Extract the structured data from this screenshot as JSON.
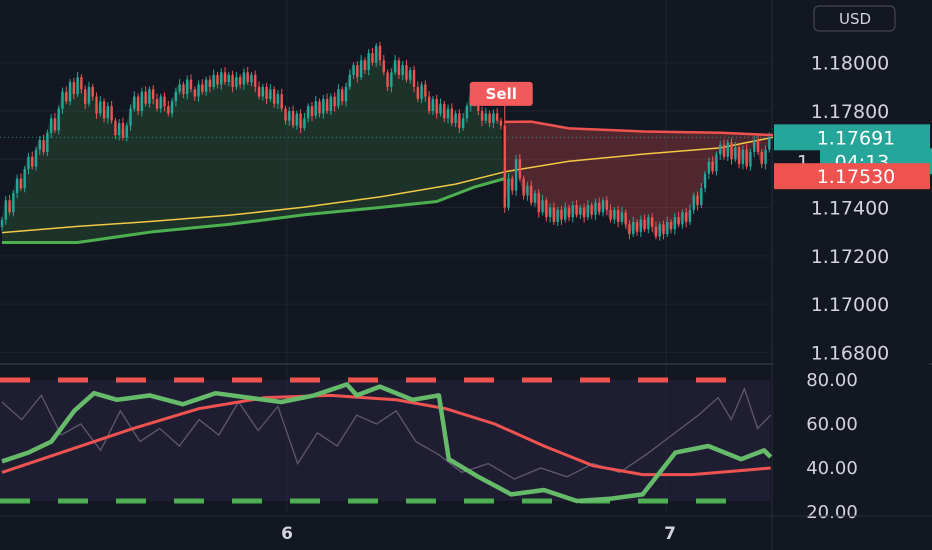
{
  "chart_data": [
    {
      "type": "candlestick",
      "currency": "USD",
      "y_ticks": [
        "1.18000",
        "1.17800",
        "1.17400",
        "1.17200",
        "1.17000",
        "1.16800"
      ],
      "ylim": [
        1.1676,
        1.1826
      ],
      "x_ticks": [
        "6",
        "7"
      ],
      "last_price": "1.17691",
      "countdown": "04:13",
      "countdown_prefix": "1.",
      "stop_price": "1.17530",
      "signal": {
        "label": "Sell",
        "index": 133,
        "price": 1.17755
      },
      "candles": [
        {
          "c": 1.1735
        },
        {
          "c": 1.1743
        },
        {
          "c": 1.1738
        },
        {
          "c": 1.1746
        },
        {
          "c": 1.1752
        },
        {
          "c": 1.1748
        },
        {
          "c": 1.1756
        },
        {
          "c": 1.1761
        },
        {
          "c": 1.1757
        },
        {
          "c": 1.1764
        },
        {
          "c": 1.1768
        },
        {
          "c": 1.1763
        },
        {
          "c": 1.1771
        },
        {
          "c": 1.1777
        },
        {
          "c": 1.1772
        },
        {
          "c": 1.1781
        },
        {
          "c": 1.1788
        },
        {
          "c": 1.1784
        },
        {
          "c": 1.1792
        },
        {
          "c": 1.1787
        },
        {
          "c": 1.1794
        },
        {
          "c": 1.1789
        },
        {
          "c": 1.1783
        },
        {
          "c": 1.179
        },
        {
          "c": 1.1786
        },
        {
          "c": 1.1779
        },
        {
          "c": 1.1784
        },
        {
          "c": 1.1777
        },
        {
          "c": 1.1782
        },
        {
          "c": 1.1776
        },
        {
          "c": 1.177
        },
        {
          "c": 1.1775
        },
        {
          "c": 1.1769
        },
        {
          "c": 1.1774
        },
        {
          "c": 1.1781
        },
        {
          "c": 1.1786
        },
        {
          "c": 1.178
        },
        {
          "c": 1.1788
        },
        {
          "c": 1.1783
        },
        {
          "c": 1.1789
        },
        {
          "c": 1.1785
        },
        {
          "c": 1.1781
        },
        {
          "c": 1.1786
        },
        {
          "c": 1.1782
        },
        {
          "c": 1.1779
        },
        {
          "c": 1.1784
        },
        {
          "c": 1.1788
        },
        {
          "c": 1.1791
        },
        {
          "c": 1.1787
        },
        {
          "c": 1.1793
        },
        {
          "c": 1.1789
        },
        {
          "c": 1.1786
        },
        {
          "c": 1.1791
        },
        {
          "c": 1.1788
        },
        {
          "c": 1.1793
        },
        {
          "c": 1.179
        },
        {
          "c": 1.1795
        },
        {
          "c": 1.1791
        },
        {
          "c": 1.1796
        },
        {
          "c": 1.1792
        },
        {
          "c": 1.1795
        },
        {
          "c": 1.179
        },
        {
          "c": 1.1794
        },
        {
          "c": 1.1791
        },
        {
          "c": 1.1796
        },
        {
          "c": 1.1792
        },
        {
          "c": 1.1795
        },
        {
          "c": 1.179
        },
        {
          "c": 1.1786
        },
        {
          "c": 1.179
        },
        {
          "c": 1.1785
        },
        {
          "c": 1.1789
        },
        {
          "c": 1.1783
        },
        {
          "c": 1.1787
        },
        {
          "c": 1.1781
        },
        {
          "c": 1.1776
        },
        {
          "c": 1.178
        },
        {
          "c": 1.1774
        },
        {
          "c": 1.1779
        },
        {
          "c": 1.1773
        },
        {
          "c": 1.1777
        },
        {
          "c": 1.1782
        },
        {
          "c": 1.1778
        },
        {
          "c": 1.1784
        },
        {
          "c": 1.1779
        },
        {
          "c": 1.1785
        },
        {
          "c": 1.178
        },
        {
          "c": 1.1786
        },
        {
          "c": 1.1782
        },
        {
          "c": 1.1789
        },
        {
          "c": 1.1784
        },
        {
          "c": 1.179
        },
        {
          "c": 1.1795
        },
        {
          "c": 1.1799
        },
        {
          "c": 1.1794
        },
        {
          "c": 1.1801
        },
        {
          "c": 1.1797
        },
        {
          "c": 1.1804
        },
        {
          "c": 1.18
        },
        {
          "c": 1.1807
        },
        {
          "c": 1.1801
        },
        {
          "c": 1.1796
        },
        {
          "c": 1.179
        },
        {
          "c": 1.1796
        },
        {
          "c": 1.1801
        },
        {
          "c": 1.1795
        },
        {
          "c": 1.1799
        },
        {
          "c": 1.1793
        },
        {
          "c": 1.1797
        },
        {
          "c": 1.179
        },
        {
          "c": 1.1785
        },
        {
          "c": 1.1791
        },
        {
          "c": 1.1786
        },
        {
          "c": 1.178
        },
        {
          "c": 1.1785
        },
        {
          "c": 1.1779
        },
        {
          "c": 1.1783
        },
        {
          "c": 1.1777
        },
        {
          "c": 1.1781
        },
        {
          "c": 1.1775
        },
        {
          "c": 1.1779
        },
        {
          "c": 1.1773
        },
        {
          "c": 1.1777
        },
        {
          "c": 1.1782
        },
        {
          "c": 1.1787
        },
        {
          "c": 1.1783
        },
        {
          "c": 1.178
        },
        {
          "c": 1.1776
        },
        {
          "c": 1.1779
        },
        {
          "c": 1.1775
        },
        {
          "c": 1.1779
        },
        {
          "c": 1.1776
        },
        {
          "c": 1.1774
        },
        {
          "c": 1.174
        },
        {
          "c": 1.1752
        },
        {
          "c": 1.1747
        },
        {
          "c": 1.176
        },
        {
          "c": 1.1752
        },
        {
          "c": 1.1745
        },
        {
          "c": 1.1749
        },
        {
          "c": 1.1742
        },
        {
          "c": 1.1746
        },
        {
          "c": 1.1738
        },
        {
          "c": 1.1743
        },
        {
          "c": 1.1736
        },
        {
          "c": 1.174
        },
        {
          "c": 1.1734
        },
        {
          "c": 1.1739
        },
        {
          "c": 1.1735
        },
        {
          "c": 1.174
        },
        {
          "c": 1.1736
        },
        {
          "c": 1.1741
        },
        {
          "c": 1.1737
        },
        {
          "c": 1.174
        },
        {
          "c": 1.1736
        },
        {
          "c": 1.1741
        },
        {
          "c": 1.1737
        },
        {
          "c": 1.1742
        },
        {
          "c": 1.1738
        },
        {
          "c": 1.1743
        },
        {
          "c": 1.1739
        },
        {
          "c": 1.1735
        },
        {
          "c": 1.1739
        },
        {
          "c": 1.1734
        },
        {
          "c": 1.1738
        },
        {
          "c": 1.1733
        },
        {
          "c": 1.1729
        },
        {
          "c": 1.1734
        },
        {
          "c": 1.173
        },
        {
          "c": 1.1735
        },
        {
          "c": 1.1731
        },
        {
          "c": 1.1736
        },
        {
          "c": 1.1732
        },
        {
          "c": 1.1728
        },
        {
          "c": 1.1733
        },
        {
          "c": 1.1729
        },
        {
          "c": 1.1734
        },
        {
          "c": 1.1731
        },
        {
          "c": 1.1736
        },
        {
          "c": 1.1733
        },
        {
          "c": 1.1738
        },
        {
          "c": 1.1734
        },
        {
          "c": 1.1739
        },
        {
          "c": 1.1745
        },
        {
          "c": 1.1741
        },
        {
          "c": 1.1748
        },
        {
          "c": 1.1754
        },
        {
          "c": 1.1759
        },
        {
          "c": 1.1755
        },
        {
          "c": 1.1762
        },
        {
          "c": 1.1766
        },
        {
          "c": 1.1761
        },
        {
          "c": 1.1767
        },
        {
          "c": 1.176
        },
        {
          "c": 1.1765
        },
        {
          "c": 1.1758
        },
        {
          "c": 1.1764
        },
        {
          "c": 1.1757
        },
        {
          "c": 1.1763
        },
        {
          "c": 1.1768
        },
        {
          "c": 1.1763
        },
        {
          "c": 1.1758
        },
        {
          "c": 1.1764
        },
        {
          "c": 1.1769
        }
      ],
      "yellow_ma": [
        [
          0,
          1.17296
        ],
        [
          20,
          1.17322
        ],
        [
          40,
          1.17343
        ],
        [
          60,
          1.17368
        ],
        [
          80,
          1.17402
        ],
        [
          100,
          1.17444
        ],
        [
          120,
          1.17497
        ],
        [
          133,
          1.17548
        ],
        [
          150,
          1.17592
        ],
        [
          170,
          1.17622
        ],
        [
          190,
          1.17647
        ],
        [
          204,
          1.17691
        ]
      ],
      "stop_line_up": [
        [
          0,
          1.17255
        ],
        [
          20,
          1.17255
        ],
        [
          40,
          1.173
        ],
        [
          60,
          1.1733
        ],
        [
          80,
          1.1737
        ],
        [
          100,
          1.174
        ],
        [
          115,
          1.17425
        ],
        [
          125,
          1.17485
        ],
        [
          133,
          1.1752
        ]
      ],
      "stop_line_down": [
        [
          133,
          1.17755
        ],
        [
          140,
          1.17756
        ],
        [
          150,
          1.17728
        ],
        [
          170,
          1.17715
        ],
        [
          190,
          1.1771
        ],
        [
          204,
          1.177
        ]
      ],
      "colors": {
        "up": "#26a69a",
        "down": "#ef5350",
        "ma": "#f3c846",
        "stop_up": "#4caf50",
        "stop_down": "#ef5350",
        "fill_up": "#4caf50",
        "fill_down": "#ef5350"
      }
    },
    {
      "type": "line",
      "y_ticks": [
        "80.00",
        "60.00",
        "40.00",
        "20.00"
      ],
      "ylim": [
        20,
        80
      ],
      "upper_band": 80,
      "lower_band": 25,
      "series": [
        {
          "values": [
            [
              0,
              43
            ],
            [
              8,
              47
            ],
            [
              15,
              52
            ],
            [
              22,
              66
            ],
            [
              28,
              74
            ],
            [
              35,
              71
            ],
            [
              45,
              73
            ],
            [
              55,
              69
            ],
            [
              65,
              74
            ],
            [
              75,
              72
            ],
            [
              85,
              70
            ],
            [
              95,
              73
            ],
            [
              105,
              78
            ],
            [
              108,
              73
            ],
            [
              115,
              77
            ],
            [
              125,
              71
            ],
            [
              133,
              73
            ],
            [
              136,
              44
            ],
            [
              145,
              36
            ],
            [
              155,
              28
            ],
            [
              165,
              30
            ],
            [
              175,
              25
            ],
            [
              185,
              26
            ],
            [
              195,
              28
            ],
            [
              205,
              47
            ],
            [
              215,
              50
            ],
            [
              225,
              44
            ],
            [
              232,
              48
            ],
            [
              234,
              45
            ]
          ]
        },
        {
          "values": [
            [
              0,
              38
            ],
            [
              20,
              48
            ],
            [
              40,
              58
            ],
            [
              60,
              67
            ],
            [
              80,
              72
            ],
            [
              100,
              73
            ],
            [
              120,
              71
            ],
            [
              135,
              67
            ],
            [
              150,
              60
            ],
            [
              165,
              50
            ],
            [
              180,
              41
            ],
            [
              195,
              37
            ],
            [
              210,
              37
            ],
            [
              226,
              39
            ],
            [
              234,
              40
            ]
          ]
        },
        {
          "values": [
            [
              0,
              70
            ],
            [
              6,
              62
            ],
            [
              12,
              73
            ],
            [
              18,
              55
            ],
            [
              24,
              60
            ],
            [
              30,
              48
            ],
            [
              36,
              66
            ],
            [
              42,
              52
            ],
            [
              48,
              58
            ],
            [
              54,
              50
            ],
            [
              60,
              62
            ],
            [
              66,
              55
            ],
            [
              72,
              70
            ],
            [
              78,
              57
            ],
            [
              84,
              68
            ],
            [
              90,
              42
            ],
            [
              96,
              56
            ],
            [
              102,
              50
            ],
            [
              108,
              64
            ],
            [
              114,
              60
            ],
            [
              120,
              66
            ],
            [
              126,
              52
            ],
            [
              133,
              46
            ],
            [
              140,
              38
            ],
            [
              148,
              42
            ],
            [
              156,
              35
            ],
            [
              164,
              40
            ],
            [
              172,
              36
            ],
            [
              180,
              42
            ],
            [
              188,
              38
            ],
            [
              196,
              46
            ],
            [
              204,
              55
            ],
            [
              212,
              64
            ],
            [
              218,
              72
            ],
            [
              222,
              62
            ],
            [
              226,
              76
            ],
            [
              230,
              58
            ],
            [
              234,
              64
            ]
          ]
        }
      ],
      "colors": {
        "main": "#66bb6a",
        "signal": "#ef5350",
        "raw": "#5d5a6e",
        "band_upper": "#ef5350",
        "band_lower": "#4caf50",
        "bg": "#2a2240"
      }
    }
  ]
}
